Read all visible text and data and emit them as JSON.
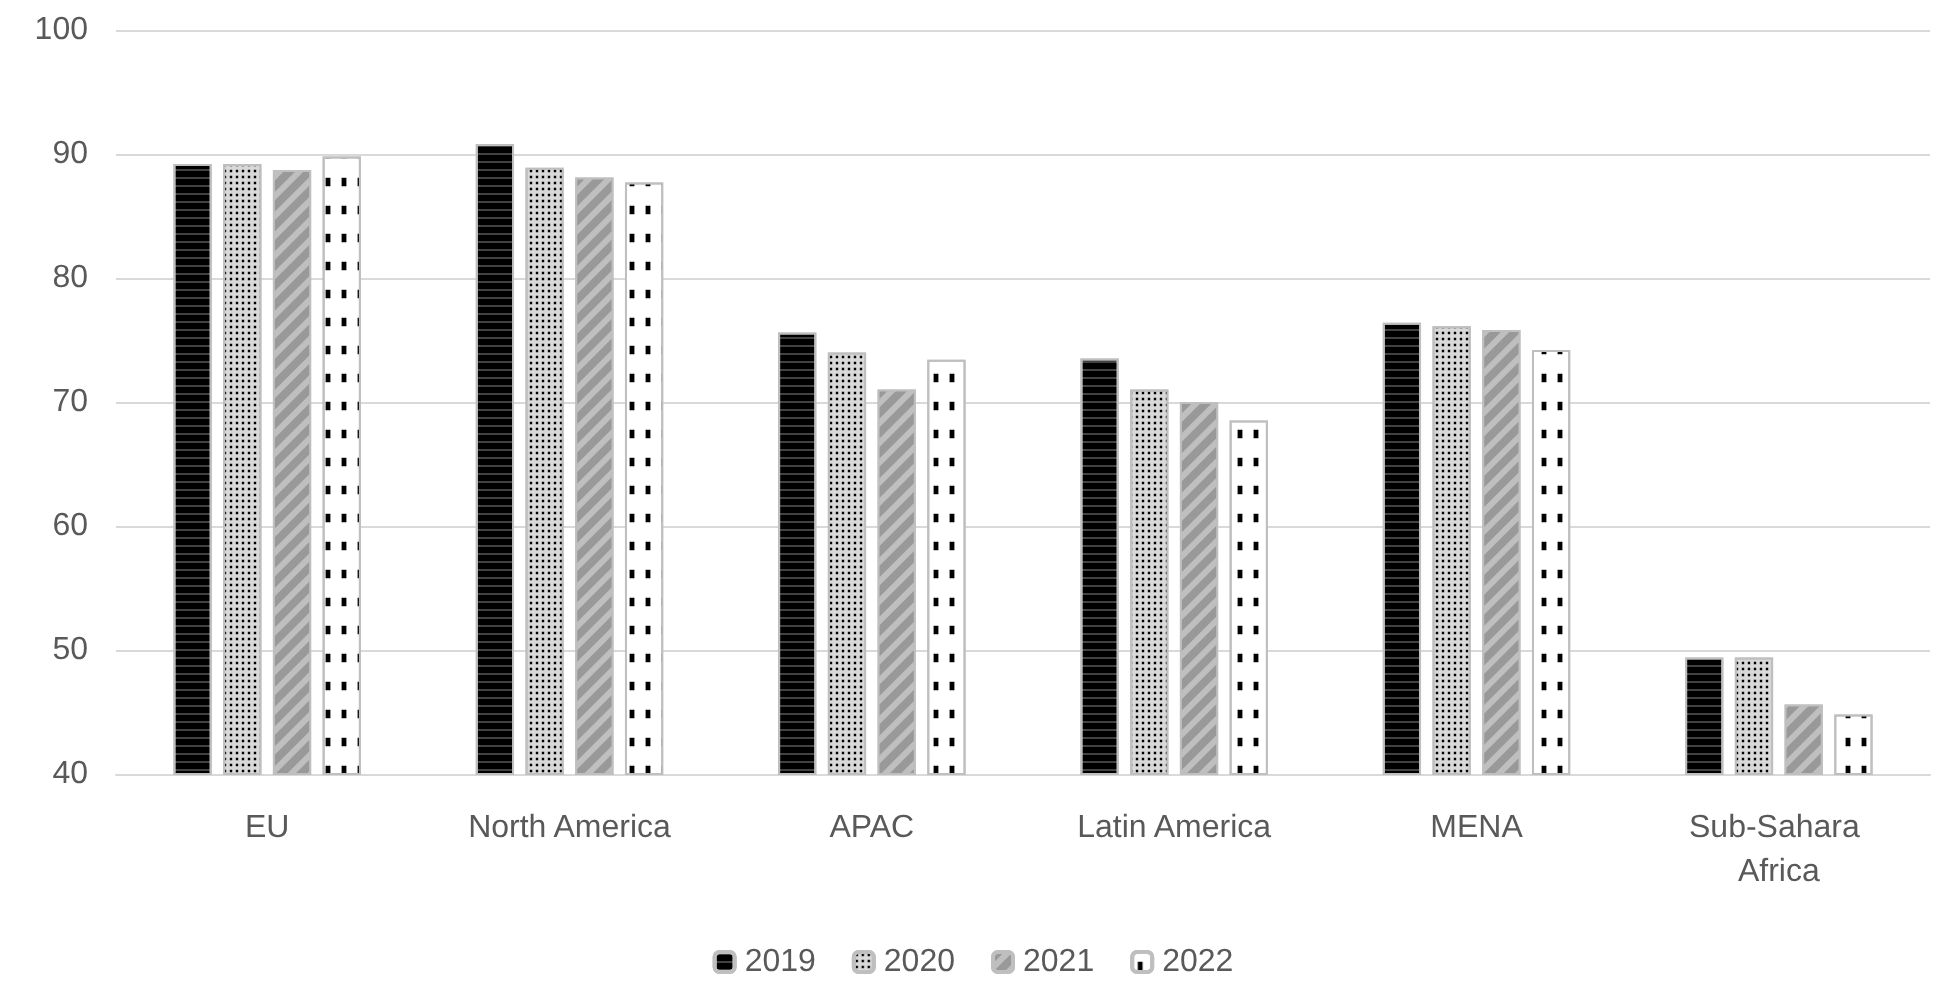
{
  "chart_data": {
    "type": "bar",
    "categories": [
      "EU",
      "North America",
      "APAC",
      "Latin America",
      "MENA",
      "Sub-Sahara Africa"
    ],
    "series": [
      {
        "name": "2019",
        "color": "#000000",
        "values": [
          89.2,
          90.8,
          75.6,
          73.5,
          76.4,
          49.4
        ]
      },
      {
        "name": "2020",
        "color": "#d9d9d9",
        "values": [
          89.2,
          88.9,
          74.0,
          71.0,
          76.1,
          49.4
        ]
      },
      {
        "name": "2021",
        "color": "#bfbfbf",
        "values": [
          88.7,
          88.1,
          71.0,
          70.0,
          75.8,
          45.6
        ]
      },
      {
        "name": "2022",
        "color": "#ffffff",
        "values": [
          89.8,
          87.7,
          73.4,
          68.5,
          74.2,
          44.8
        ]
      }
    ],
    "ylim": [
      40,
      100
    ],
    "yticks": [
      40,
      50,
      60,
      70,
      80,
      90,
      100
    ],
    "grid": "y",
    "legend": "bottom"
  }
}
